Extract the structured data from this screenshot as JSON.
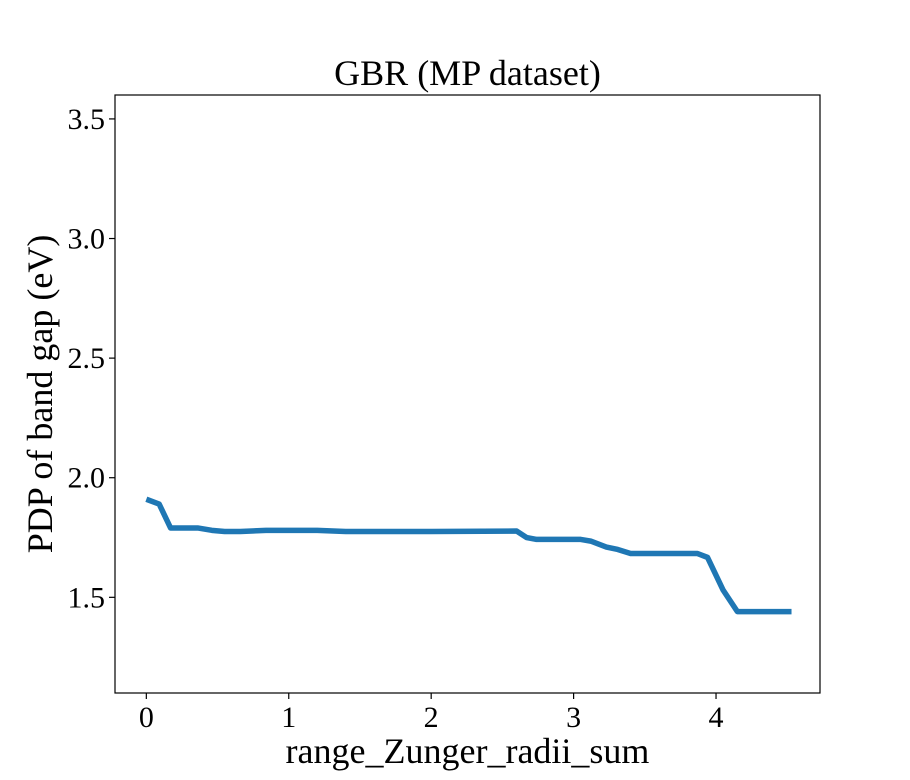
{
  "chart_data": {
    "type": "line",
    "title": "GBR (MP dataset)",
    "xlabel": "range_Zunger_radii_sum",
    "ylabel": "PDP of band gap (eV)",
    "xlim": [
      -0.22,
      4.73
    ],
    "ylim": [
      1.1,
      3.6
    ],
    "xticks": [
      0,
      1,
      2,
      3,
      4
    ],
    "xtick_labels": [
      "0",
      "1",
      "2",
      "3",
      "4"
    ],
    "yticks": [
      1.5,
      2.0,
      2.5,
      3.0,
      3.5
    ],
    "ytick_labels": [
      "1.5",
      "2.0",
      "2.5",
      "3.0",
      "3.5"
    ],
    "grid": false,
    "series": [
      {
        "color": "#1f77b4",
        "x": [
          0.0,
          0.09,
          0.17,
          0.36,
          0.46,
          0.55,
          0.66,
          0.84,
          1.2,
          1.4,
          2.0,
          2.6,
          2.67,
          2.74,
          3.05,
          3.12,
          3.23,
          3.31,
          3.4,
          3.7,
          3.87,
          3.94,
          4.05,
          4.15,
          4.53
        ],
        "y": [
          1.91,
          1.89,
          1.79,
          1.79,
          1.78,
          1.775,
          1.775,
          1.78,
          1.78,
          1.775,
          1.775,
          1.777,
          1.75,
          1.742,
          1.742,
          1.735,
          1.71,
          1.7,
          1.683,
          1.683,
          1.683,
          1.667,
          1.53,
          1.44,
          1.44
        ]
      }
    ]
  }
}
